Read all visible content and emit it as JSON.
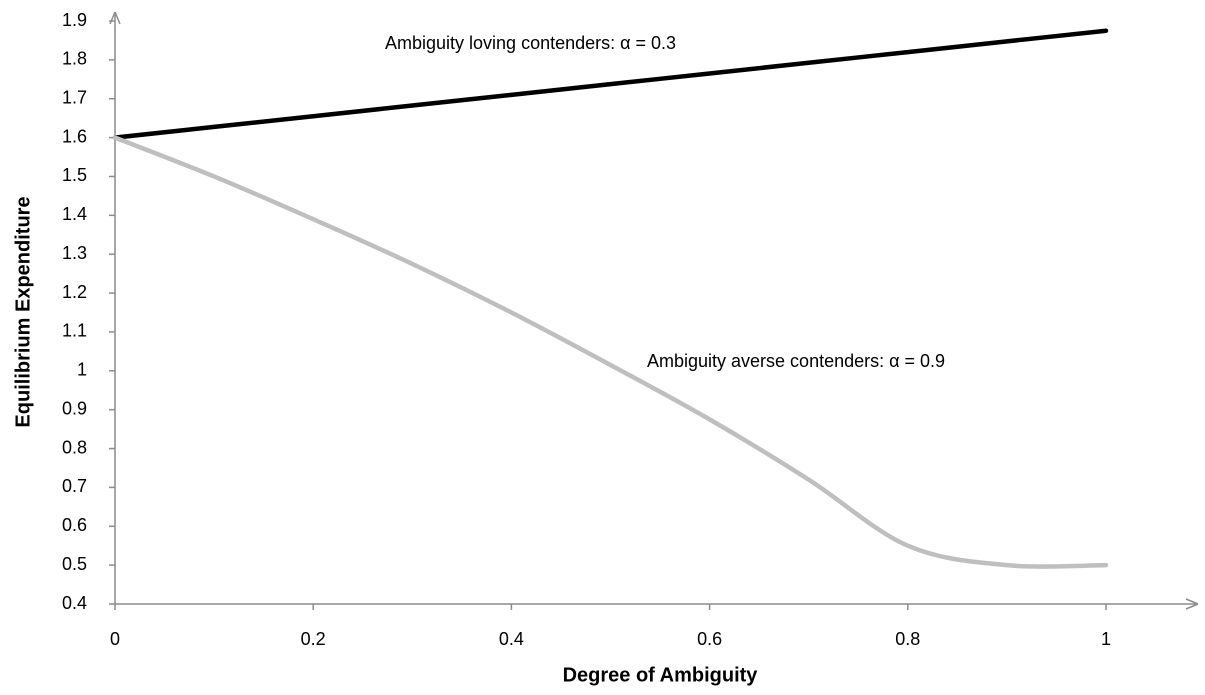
{
  "chart_data": {
    "type": "line",
    "x_label": "Degree of Ambiguity",
    "y_label": "Equilibrium Expenditure",
    "annotations": [
      "Ambiguity loving contenders: α = 0.3",
      "Ambiguity averse contenders: α = 0.9"
    ],
    "x": [
      0,
      0.1,
      0.2,
      0.3,
      0.4,
      0.5,
      0.6,
      0.7,
      0.8,
      0.9,
      1
    ],
    "series": [
      {
        "color": "#000000",
        "values": [
          1.6,
          1.6275,
          1.655,
          1.6825,
          1.71,
          1.7375,
          1.765,
          1.7925,
          1.82,
          1.8475,
          1.875
        ]
      },
      {
        "color": "#bfbfbf",
        "values": [
          1.6,
          1.5,
          1.39,
          1.275,
          1.15,
          1.015,
          0.875,
          0.72,
          0.55,
          0.5,
          0.5
        ]
      }
    ],
    "xlim": [
      0,
      1
    ],
    "ylim": [
      0.4,
      1.9
    ],
    "xticks": [
      0,
      0.2,
      0.4,
      0.6,
      0.8,
      1
    ],
    "yticks": [
      0.4,
      0.5,
      0.6,
      0.7,
      0.8,
      0.9,
      1,
      1.1,
      1.2,
      1.3,
      1.4,
      1.5,
      1.6,
      1.7,
      1.8,
      1.9
    ]
  }
}
